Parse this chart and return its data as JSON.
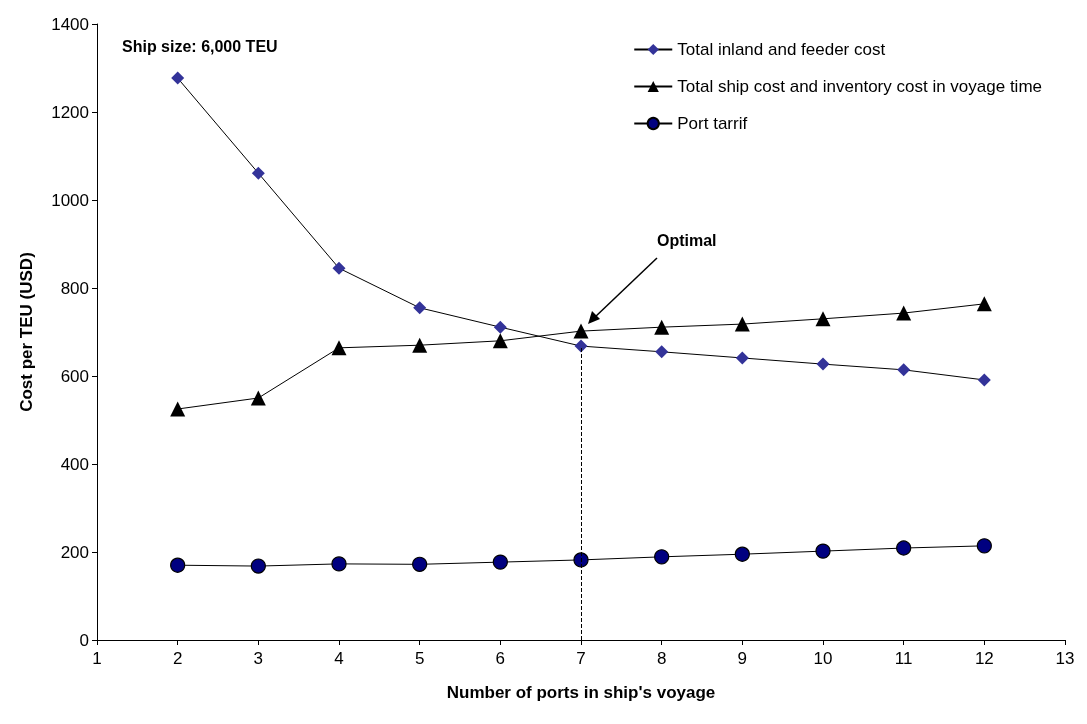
{
  "chart_data": {
    "type": "line",
    "xlabel": "Number of ports in ship's voyage",
    "ylabel": "Cost per TEU (USD)",
    "x": [
      2,
      3,
      4,
      5,
      6,
      7,
      8,
      9,
      10,
      11,
      12
    ],
    "series": [
      {
        "name": "Total inland and feeder cost",
        "color": "#333399",
        "marker": "diamond",
        "values": [
          1277,
          1061,
          845,
          755,
          711,
          668,
          655,
          641,
          627,
          614,
          591
        ]
      },
      {
        "name": "Total ship cost and inventory cost in voyage time",
        "color": "#000000",
        "marker": "triangle",
        "values": [
          525,
          550,
          664,
          670,
          680,
          702,
          711,
          718,
          730,
          743,
          764
        ]
      },
      {
        "name": "Port tarrif",
        "color": "#000080",
        "marker": "circle",
        "values": [
          170,
          168,
          173,
          172,
          177,
          182,
          189,
          195,
          202,
          209,
          214
        ]
      }
    ],
    "xlim": [
      1,
      13
    ],
    "xticks": [
      1,
      2,
      3,
      4,
      5,
      6,
      7,
      8,
      9,
      10,
      11,
      12,
      13
    ],
    "ylim": [
      0,
      1400
    ],
    "yticks": [
      0,
      200,
      400,
      600,
      800,
      1000,
      1200,
      1400
    ],
    "grid": false,
    "legend": "top right",
    "line_style": "solid",
    "ref_lines": [
      {
        "axis": "x",
        "value": 7,
        "label": null,
        "line_style": "dashed",
        "color": "#000000"
      }
    ],
    "annotations": [
      "Ship size: 6,000 TEU",
      "Optimal"
    ]
  }
}
